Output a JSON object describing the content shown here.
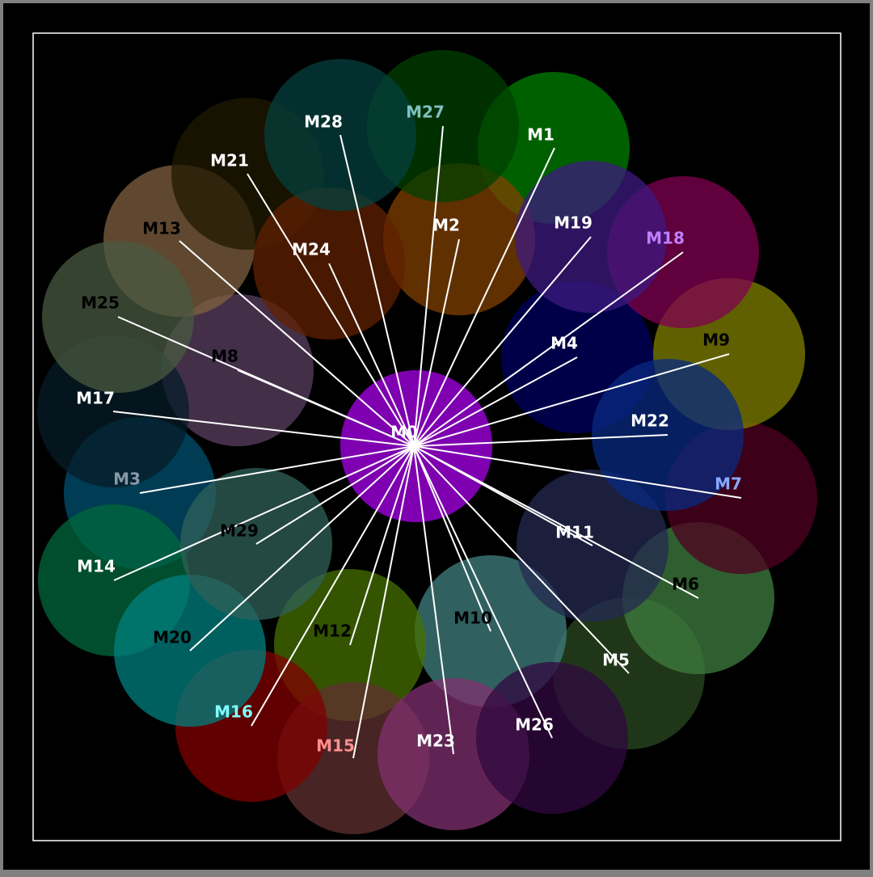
{
  "colors": {
    "background": "#000000",
    "frame": "#808080",
    "border": "#ffffff",
    "edge": "#ffffff"
  },
  "center": {
    "label": "M0",
    "color": "#7e00b0",
    "label_color": "#ffffff"
  },
  "nodes": [
    {
      "label": "M1",
      "color": "#008000",
      "label_color": "#ffffff"
    },
    {
      "label": "M2",
      "color": "#804000",
      "label_color": "#ffffff"
    },
    {
      "label": "M3",
      "color": "#005070",
      "label_color": "#8899aa"
    },
    {
      "label": "M4",
      "color": "#000060",
      "label_color": "#ffffff"
    },
    {
      "label": "M5",
      "color": "#2a4a20",
      "label_color": "#ffffff"
    },
    {
      "label": "M6",
      "color": "#3f7d40",
      "label_color": "#000000"
    },
    {
      "label": "M7",
      "color": "#500020",
      "label_color": "#88aaff"
    },
    {
      "label": "M8",
      "color": "#5a4060",
      "label_color": "#000000"
    },
    {
      "label": "M9",
      "color": "#808000",
      "label_color": "#000000"
    },
    {
      "label": "M10",
      "color": "#408080",
      "label_color": "#000000"
    },
    {
      "label": "M11",
      "color": "#242a50",
      "label_color": "#ffffff"
    },
    {
      "label": "M12",
      "color": "#457000",
      "label_color": "#000000"
    },
    {
      "label": "M13",
      "color": "#806040",
      "label_color": "#000000"
    },
    {
      "label": "M14",
      "color": "#00683c",
      "label_color": "#ffffff"
    },
    {
      "label": "M15",
      "color": "#603030",
      "label_color": "#ff9090"
    },
    {
      "label": "M16",
      "color": "#800000",
      "label_color": "#80ffff"
    },
    {
      "label": "M17",
      "color": "#061c28",
      "label_color": "#ffffff"
    },
    {
      "label": "M18",
      "color": "#800050",
      "label_color": "#c080ff"
    },
    {
      "label": "M19",
      "color": "#3c1a80",
      "label_color": "#ffffff"
    },
    {
      "label": "M20",
      "color": "#008080",
      "label_color": "#000000"
    },
    {
      "label": "M21",
      "color": "#201800",
      "label_color": "#ffffff"
    },
    {
      "label": "M22",
      "color": "#082a80",
      "label_color": "#ffffff"
    },
    {
      "label": "M23",
      "color": "#803070",
      "label_color": "#ffffff"
    },
    {
      "label": "M24",
      "color": "#602000",
      "label_color": "#ffffff"
    },
    {
      "label": "M25",
      "color": "#485a40",
      "label_color": "#000000"
    },
    {
      "label": "M26",
      "color": "#300840",
      "label_color": "#ffffff"
    },
    {
      "label": "M27",
      "color": "#004000",
      "label_color": "#80c0c0"
    },
    {
      "label": "M28",
      "color": "#04403e",
      "label_color": "#ffffff"
    },
    {
      "label": "M29",
      "color": "#306058",
      "label_color": "#000000"
    }
  ]
}
